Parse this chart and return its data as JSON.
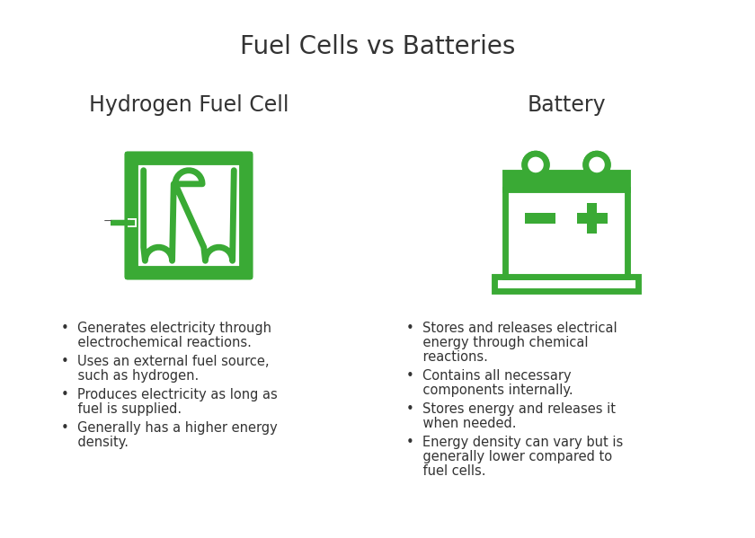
{
  "title": "Fuel Cells vs Batteries",
  "title_fontsize": 20,
  "title_color": "#333333",
  "background_color": "#ffffff",
  "icon_color": "#3aaa35",
  "left_heading": "Hydrogen Fuel Cell",
  "right_heading": "Battery",
  "heading_fontsize": 17,
  "heading_color": "#333333",
  "bullet_fontsize": 10.5,
  "bullet_color": "#333333",
  "left_bullets": [
    "Generates electricity through\nelectrochemical reactions.",
    "Uses an external fuel source,\nsuch as hydrogen.",
    "Produces electricity as long as\nfuel is supplied.",
    "Generally has a higher energy\ndensity."
  ],
  "right_bullets": [
    "Stores and releases electrical\nenergy through chemical\nreactions.",
    "Contains all necessary\ncomponents internally.",
    "Stores energy and releases it\nwhen needed.",
    "Energy density can vary but is\ngenerally lower compared to\nfuel cells."
  ],
  "figsize": [
    8.4,
    5.99
  ],
  "dpi": 100
}
